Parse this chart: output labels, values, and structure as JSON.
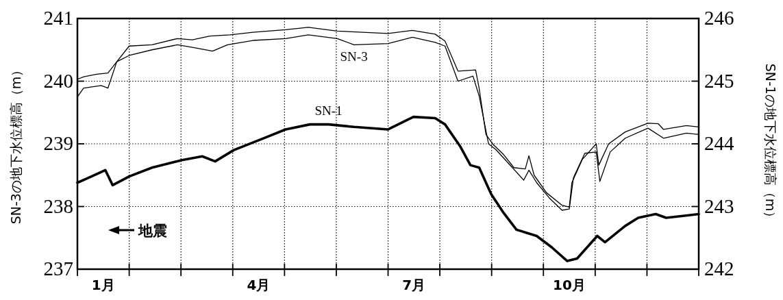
{
  "chart_data": {
    "type": "line",
    "xlabel": null,
    "ylabel": "SN-3の地下水位標高（m）",
    "y2label": "SN-1の地下水位標高（m）",
    "xlim": [
      0,
      12
    ],
    "xticks": [
      {
        "value": 0,
        "label": null
      },
      {
        "value": 0.5,
        "label": "1月"
      },
      {
        "value": 1,
        "label": null
      },
      {
        "value": 2,
        "label": null
      },
      {
        "value": 3,
        "label": null
      },
      {
        "value": 3.5,
        "label": "4月"
      },
      {
        "value": 4,
        "label": null
      },
      {
        "value": 5,
        "label": null
      },
      {
        "value": 6,
        "label": null
      },
      {
        "value": 6.5,
        "label": "7月"
      },
      {
        "value": 7,
        "label": null
      },
      {
        "value": 8,
        "label": null
      },
      {
        "value": 9,
        "label": null
      },
      {
        "value": 9.5,
        "label": "10月"
      },
      {
        "value": 10,
        "label": null
      },
      {
        "value": 11,
        "label": null
      },
      {
        "value": 12,
        "label": null
      }
    ],
    "ylim": [
      237,
      241
    ],
    "yticks": [
      237,
      238,
      239,
      240,
      241
    ],
    "y2lim": [
      242,
      246
    ],
    "y2ticks": [
      242,
      243,
      244,
      245,
      246
    ],
    "grid": true,
    "legend": false,
    "series": [
      {
        "color": "#000000",
        "x": [
          0,
          0.12,
          0.37,
          0.59,
          0.76,
          1.0,
          1.44,
          1.93,
          2.22,
          2.56,
          2.95,
          3.39,
          4.02,
          4.46,
          5.02,
          6.0,
          6.47,
          6.91,
          7.1,
          7.35,
          7.69,
          7.76,
          7.89,
          8.03,
          8.23,
          8.43,
          8.65,
          8.72,
          8.82,
          9.06,
          9.36,
          9.5,
          9.55,
          9.75,
          10.02,
          10.07,
          10.26,
          10.58,
          11.02,
          11.22,
          11.32,
          11.76,
          12.0
        ],
        "values": [
          240.03,
          240.07,
          240.11,
          240.13,
          240.31,
          240.56,
          240.58,
          240.68,
          240.66,
          240.72,
          240.74,
          240.78,
          240.82,
          240.86,
          240.8,
          240.76,
          240.81,
          240.75,
          240.64,
          240.16,
          240.18,
          239.88,
          239.15,
          238.99,
          238.83,
          238.62,
          238.6,
          238.81,
          238.5,
          238.22,
          238.02,
          237.99,
          238.38,
          238.75,
          239.0,
          238.66,
          239.0,
          239.19,
          239.33,
          239.32,
          239.23,
          239.29,
          239.27
        ]
      },
      {
        "name": "SN-3",
        "color": "#000000",
        "x": [
          0,
          0.12,
          0.46,
          0.59,
          0.76,
          1.0,
          1.44,
          1.93,
          2.22,
          2.61,
          2.9,
          3.39,
          4.02,
          4.46,
          5.02,
          5.34,
          6.0,
          6.47,
          6.91,
          7.1,
          7.35,
          7.64,
          7.76,
          7.94,
          8.08,
          8.38,
          8.62,
          8.72,
          8.87,
          9.11,
          9.36,
          9.5,
          9.58,
          9.8,
          10.02,
          10.09,
          10.29,
          10.58,
          11.02,
          11.32,
          11.76,
          12.0
        ],
        "values": [
          239.75,
          239.89,
          239.93,
          239.89,
          240.31,
          240.41,
          240.5,
          240.58,
          240.54,
          240.48,
          240.58,
          240.65,
          240.68,
          240.74,
          240.68,
          240.58,
          240.6,
          240.7,
          240.62,
          240.56,
          240.0,
          240.08,
          239.76,
          239.0,
          238.91,
          238.64,
          238.42,
          238.58,
          238.38,
          238.14,
          237.94,
          237.96,
          238.46,
          238.85,
          238.87,
          238.4,
          238.87,
          239.09,
          239.25,
          239.09,
          239.17,
          239.15
        ]
      },
      {
        "name": "SN-1",
        "color": "#000000",
        "axis": "y2",
        "x": [
          0,
          0.22,
          0.54,
          0.68,
          1.0,
          1.44,
          2.02,
          2.41,
          2.66,
          3.02,
          3.63,
          4.02,
          4.49,
          4.85,
          5.34,
          6.0,
          6.49,
          6.91,
          7.1,
          7.4,
          7.59,
          7.76,
          7.99,
          8.23,
          8.48,
          8.87,
          9.16,
          9.46,
          9.65,
          10.04,
          10.19,
          10.58,
          10.83,
          11.17,
          11.37,
          11.81,
          12.0
        ],
        "values": [
          243.38,
          243.46,
          243.58,
          243.34,
          243.48,
          243.62,
          243.74,
          243.8,
          243.72,
          243.9,
          244.1,
          244.23,
          244.31,
          244.31,
          244.27,
          244.23,
          244.43,
          244.41,
          244.31,
          243.95,
          243.66,
          243.62,
          243.2,
          242.9,
          242.63,
          242.53,
          242.35,
          242.13,
          242.17,
          242.53,
          242.43,
          242.69,
          242.82,
          242.88,
          242.82,
          242.86,
          242.88
        ]
      }
    ],
    "annotations": [
      "地震"
    ]
  }
}
